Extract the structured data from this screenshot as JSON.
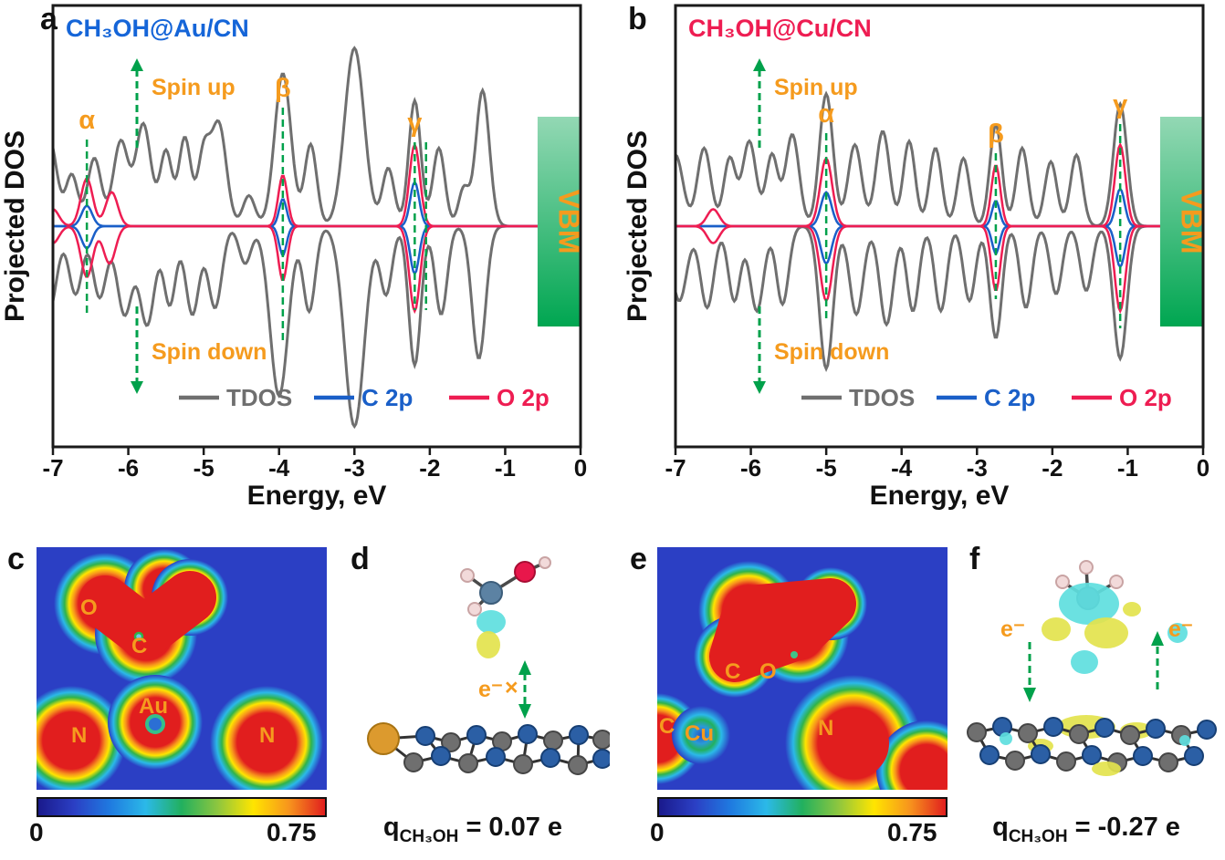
{
  "colors": {
    "green": "#00a14b",
    "orange": "#f59b1e",
    "frame": "#1a1a1a",
    "vbm_top": "#93d8b4",
    "vbm_bottom": "#00a651",
    "map_background": "#2b3fc4",
    "tdos_gray": "#6f6f6f",
    "c2p_blue": "#1a5fc8",
    "o2p_red": "#ee1d52",
    "colormap": [
      "#1a1a8c",
      "#2b3fc4",
      "#1f7ae0",
      "#2bb9e8",
      "#22b05e",
      "#8dc63f",
      "#ffe500",
      "#f7941d",
      "#e11e1e"
    ]
  },
  "panels": {
    "a": {
      "letter": "a"
    },
    "b": {
      "letter": "b"
    },
    "c": {
      "letter": "c",
      "atom_labels": [
        "O",
        "C",
        "Au",
        "N",
        "N"
      ],
      "colorbar": {
        "min": "0",
        "max": "0.75"
      }
    },
    "d": {
      "letter": "d",
      "electron_label": "e⁻",
      "cross_label": "×",
      "caption": {
        "symbol": "q",
        "subscript": "CH₃OH",
        "value": "= 0.07 e"
      }
    },
    "e": {
      "letter": "e",
      "atom_labels": [
        "C",
        "O",
        "C",
        "Cu",
        "N"
      ],
      "colorbar": {
        "min": "0",
        "max": "0.75"
      }
    },
    "f": {
      "letter": "f",
      "electron_label_left": "e⁻",
      "electron_label_right": "e⁻",
      "caption": {
        "symbol": "q",
        "subscript": "CH₃OH",
        "value": "= -0.27 e"
      }
    }
  },
  "chart_data": [
    {
      "type": "line",
      "panel": "a",
      "title": "CH₃OH@Au/CN",
      "title_color": "#1565d8",
      "xlabel": "Energy, eV",
      "ylabel": "Projected DOS",
      "xlim": [
        -7,
        0
      ],
      "xticks": [
        -7,
        -6,
        -5,
        -4,
        -3,
        -2,
        -1,
        0
      ],
      "legend": [
        {
          "label": "TDOS",
          "color": "#6f6f6f"
        },
        {
          "label": "C 2p",
          "color": "#1a5fc8"
        },
        {
          "label": "O 2p",
          "color": "#ee1d52"
        }
      ],
      "annotations": {
        "spin_up": "Spin up",
        "spin_down": "Spin down",
        "vbm": "VBM",
        "vbm_range": [
          -0.57,
          0
        ],
        "peaks": [
          {
            "label": "α",
            "x": -6.55,
            "ext": 95
          },
          {
            "label": "β",
            "x": -3.95,
            "ext": 130
          },
          {
            "label": "γ",
            "x": -2.2,
            "x2": -2.05,
            "ext": 92
          }
        ]
      },
      "encoding": "curves are gaussian peaks [center_eV, height, width_eV]; spin-up above baseline, spin-down mirrored below",
      "series": [
        {
          "name": "TDOS",
          "color": "#6f6f6f",
          "width": 3,
          "up_peaks": [
            [
              -7.05,
              0.52,
              0.1
            ],
            [
              -6.75,
              0.3,
              0.08
            ],
            [
              -6.45,
              0.4,
              0.09
            ],
            [
              -6.1,
              0.5,
              0.1
            ],
            [
              -5.8,
              0.6,
              0.1
            ],
            [
              -5.5,
              0.44,
              0.08
            ],
            [
              -5.25,
              0.52,
              0.08
            ],
            [
              -5.0,
              0.42,
              0.08
            ],
            [
              -4.8,
              0.6,
              0.1
            ],
            [
              -4.4,
              0.18,
              0.08
            ],
            [
              -3.95,
              0.9,
              0.11
            ],
            [
              -3.58,
              0.48,
              0.08
            ],
            [
              -3.0,
              1.05,
              0.13
            ],
            [
              -2.55,
              0.34,
              0.08
            ],
            [
              -2.2,
              0.74,
              0.08
            ],
            [
              -1.88,
              0.46,
              0.08
            ],
            [
              -1.55,
              0.22,
              0.07
            ],
            [
              -1.3,
              0.8,
              0.09
            ]
          ],
          "down_peaks": [
            [
              -7.05,
              0.5,
              0.1
            ],
            [
              -6.7,
              0.4,
              0.09
            ],
            [
              -6.38,
              0.42,
              0.09
            ],
            [
              -6.05,
              0.52,
              0.1
            ],
            [
              -5.75,
              0.58,
              0.1
            ],
            [
              -5.45,
              0.46,
              0.08
            ],
            [
              -5.15,
              0.52,
              0.09
            ],
            [
              -4.85,
              0.48,
              0.09
            ],
            [
              -4.45,
              0.22,
              0.08
            ],
            [
              -4.0,
              1.0,
              0.12
            ],
            [
              -3.6,
              0.5,
              0.08
            ],
            [
              -3.0,
              1.18,
              0.13
            ],
            [
              -2.58,
              0.4,
              0.08
            ],
            [
              -2.2,
              0.82,
              0.08
            ],
            [
              -1.85,
              0.52,
              0.08
            ],
            [
              -1.35,
              0.78,
              0.09
            ]
          ]
        },
        {
          "name": "C 2p",
          "color": "#1a5fc8",
          "width": 2.5,
          "up_peaks": [
            [
              -6.55,
              0.12,
              0.07
            ],
            [
              -3.95,
              0.16,
              0.05
            ],
            [
              -2.2,
              0.26,
              0.06
            ]
          ],
          "down_peaks": [
            [
              -6.55,
              0.13,
              0.07
            ],
            [
              -3.95,
              0.17,
              0.05
            ],
            [
              -2.2,
              0.28,
              0.06
            ]
          ]
        },
        {
          "name": "O 2p",
          "color": "#ee1d52",
          "width": 2.5,
          "up_peaks": [
            [
              -7.0,
              0.1,
              0.08
            ],
            [
              -6.55,
              0.28,
              0.08
            ],
            [
              -6.22,
              0.2,
              0.08
            ],
            [
              -3.95,
              0.3,
              0.06
            ],
            [
              -2.2,
              0.48,
              0.07
            ]
          ],
          "down_peaks": [
            [
              -7.0,
              0.1,
              0.08
            ],
            [
              -6.55,
              0.3,
              0.08
            ],
            [
              -6.25,
              0.22,
              0.08
            ],
            [
              -3.95,
              0.32,
              0.06
            ],
            [
              -2.2,
              0.5,
              0.07
            ]
          ]
        }
      ]
    },
    {
      "type": "line",
      "panel": "b",
      "title": "CH₃OH@Cu/CN",
      "title_color": "#ee1d52",
      "xlabel": "Energy, eV",
      "ylabel": "Projected DOS",
      "xlim": [
        -7,
        0
      ],
      "xticks": [
        -7,
        -6,
        -5,
        -4,
        -3,
        -2,
        -1,
        0
      ],
      "legend": [
        {
          "label": "TDOS",
          "color": "#6f6f6f"
        },
        {
          "label": "C 2p",
          "color": "#1a5fc8"
        },
        {
          "label": "O 2p",
          "color": "#ee1d52"
        }
      ],
      "annotations": {
        "spin_up": "Spin up",
        "spin_down": "Spin down",
        "vbm": "VBM",
        "vbm_range": [
          -0.57,
          0
        ],
        "peaks": [
          {
            "label": "α",
            "x": -5.0,
            "ext": 102
          },
          {
            "label": "β",
            "x": -2.75,
            "ext": 80
          },
          {
            "label": "γ",
            "x": -1.1,
            "ext": 112
          }
        ]
      },
      "encoding": "curves are gaussian peaks [center_eV, height, width_eV]; spin-up above baseline, spin-down mirrored below",
      "series": [
        {
          "name": "TDOS",
          "color": "#6f6f6f",
          "width": 3,
          "up_peaks": [
            [
              -7.0,
              0.42,
              0.1
            ],
            [
              -6.62,
              0.46,
              0.09
            ],
            [
              -6.28,
              0.4,
              0.08
            ],
            [
              -6.02,
              0.5,
              0.09
            ],
            [
              -5.72,
              0.42,
              0.08
            ],
            [
              -5.45,
              0.54,
              0.09
            ],
            [
              -5.0,
              0.78,
              0.09
            ],
            [
              -4.62,
              0.48,
              0.09
            ],
            [
              -4.25,
              0.56,
              0.09
            ],
            [
              -3.9,
              0.5,
              0.08
            ],
            [
              -3.55,
              0.46,
              0.08
            ],
            [
              -3.18,
              0.4,
              0.08
            ],
            [
              -2.75,
              0.6,
              0.08
            ],
            [
              -2.4,
              0.46,
              0.08
            ],
            [
              -2.02,
              0.38,
              0.08
            ],
            [
              -1.68,
              0.42,
              0.08
            ],
            [
              -1.1,
              0.72,
              0.09
            ]
          ],
          "down_peaks": [
            [
              -6.95,
              0.44,
              0.1
            ],
            [
              -6.58,
              0.48,
              0.09
            ],
            [
              -6.22,
              0.44,
              0.08
            ],
            [
              -5.92,
              0.5,
              0.09
            ],
            [
              -5.58,
              0.46,
              0.08
            ],
            [
              -5.0,
              0.84,
              0.09
            ],
            [
              -4.6,
              0.52,
              0.09
            ],
            [
              -4.2,
              0.58,
              0.09
            ],
            [
              -3.85,
              0.5,
              0.08
            ],
            [
              -3.48,
              0.5,
              0.08
            ],
            [
              -3.1,
              0.44,
              0.08
            ],
            [
              -2.75,
              0.66,
              0.08
            ],
            [
              -2.35,
              0.48,
              0.08
            ],
            [
              -1.95,
              0.4,
              0.08
            ],
            [
              -1.55,
              0.38,
              0.08
            ],
            [
              -1.1,
              0.78,
              0.09
            ]
          ]
        },
        {
          "name": "C 2p",
          "color": "#1a5fc8",
          "width": 2.5,
          "up_peaks": [
            [
              -5.0,
              0.2,
              0.07
            ],
            [
              -2.75,
              0.15,
              0.05
            ],
            [
              -1.1,
              0.22,
              0.06
            ]
          ],
          "down_peaks": [
            [
              -5.0,
              0.22,
              0.07
            ],
            [
              -2.75,
              0.16,
              0.05
            ],
            [
              -1.1,
              0.24,
              0.06
            ]
          ]
        },
        {
          "name": "O 2p",
          "color": "#ee1d52",
          "width": 2.5,
          "up_peaks": [
            [
              -6.5,
              0.1,
              0.08
            ],
            [
              -5.0,
              0.4,
              0.08
            ],
            [
              -2.75,
              0.36,
              0.06
            ],
            [
              -1.1,
              0.48,
              0.07
            ]
          ],
          "down_peaks": [
            [
              -6.5,
              0.1,
              0.08
            ],
            [
              -5.0,
              0.44,
              0.08
            ],
            [
              -2.75,
              0.38,
              0.06
            ],
            [
              -1.1,
              0.5,
              0.07
            ]
          ]
        }
      ]
    }
  ]
}
